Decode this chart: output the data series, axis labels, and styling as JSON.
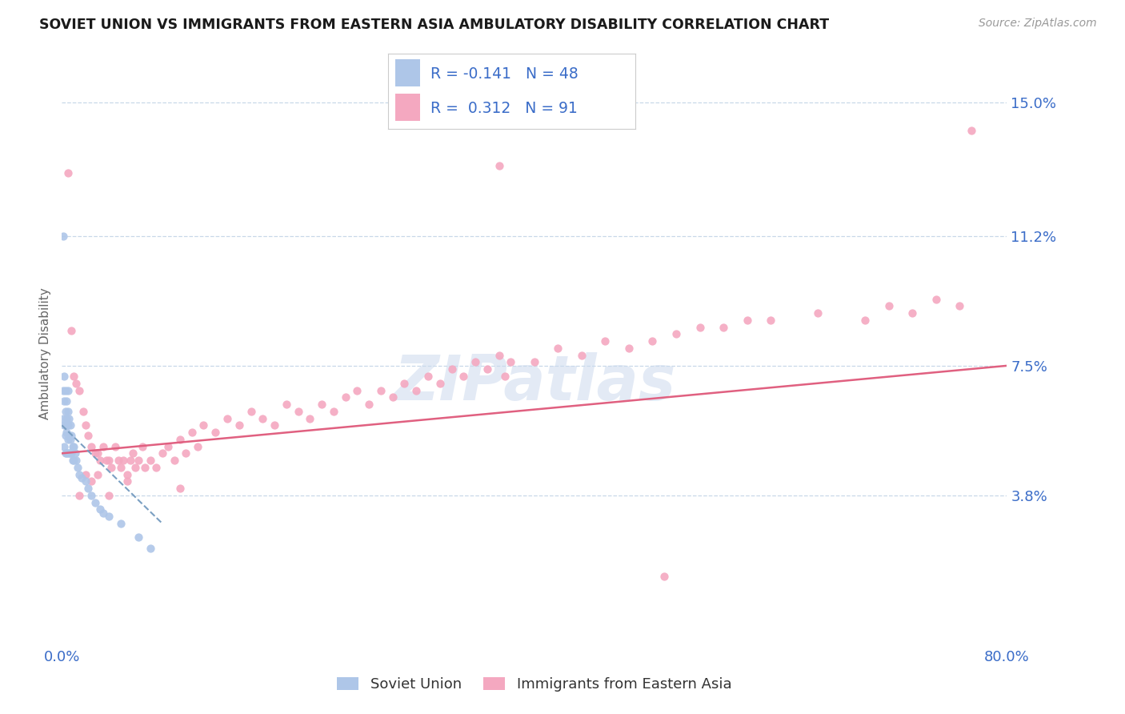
{
  "title": "SOVIET UNION VS IMMIGRANTS FROM EASTERN ASIA AMBULATORY DISABILITY CORRELATION CHART",
  "source": "Source: ZipAtlas.com",
  "ylabel": "Ambulatory Disability",
  "ytick_vals": [
    0.0,
    0.038,
    0.075,
    0.112,
    0.15
  ],
  "ytick_labels": [
    "",
    "3.8%",
    "7.5%",
    "11.2%",
    "15.0%"
  ],
  "xlim": [
    0.0,
    0.8
  ],
  "ylim": [
    -0.005,
    0.162
  ],
  "soviet_R": -0.141,
  "soviet_N": 48,
  "eastern_asia_R": 0.312,
  "eastern_asia_N": 91,
  "soviet_color": "#aec6e8",
  "eastern_asia_color": "#f4a8c0",
  "soviet_line_color": "#7a9fc2",
  "eastern_asia_line_color": "#e06080",
  "legend_text_color": "#3a6cc8",
  "background_color": "#ffffff",
  "grid_color": "#c8d8e8",
  "soviet_x": [
    0.001,
    0.001,
    0.001,
    0.002,
    0.002,
    0.002,
    0.002,
    0.003,
    0.003,
    0.003,
    0.003,
    0.003,
    0.004,
    0.004,
    0.004,
    0.004,
    0.005,
    0.005,
    0.005,
    0.005,
    0.005,
    0.006,
    0.006,
    0.006,
    0.007,
    0.007,
    0.007,
    0.008,
    0.008,
    0.009,
    0.009,
    0.01,
    0.01,
    0.011,
    0.012,
    0.013,
    0.015,
    0.017,
    0.02,
    0.022,
    0.025,
    0.028,
    0.032,
    0.035,
    0.04,
    0.05,
    0.065,
    0.075
  ],
  "soviet_y": [
    0.112,
    0.068,
    0.06,
    0.072,
    0.065,
    0.058,
    0.052,
    0.068,
    0.062,
    0.058,
    0.055,
    0.05,
    0.065,
    0.06,
    0.056,
    0.05,
    0.068,
    0.062,
    0.058,
    0.054,
    0.05,
    0.06,
    0.055,
    0.05,
    0.058,
    0.054,
    0.05,
    0.055,
    0.05,
    0.052,
    0.048,
    0.052,
    0.048,
    0.05,
    0.048,
    0.046,
    0.044,
    0.043,
    0.042,
    0.04,
    0.038,
    0.036,
    0.034,
    0.033,
    0.032,
    0.03,
    0.026,
    0.023
  ],
  "eastern_x": [
    0.005,
    0.008,
    0.01,
    0.012,
    0.015,
    0.018,
    0.02,
    0.022,
    0.025,
    0.028,
    0.03,
    0.032,
    0.035,
    0.038,
    0.04,
    0.042,
    0.045,
    0.048,
    0.05,
    0.052,
    0.055,
    0.058,
    0.06,
    0.062,
    0.065,
    0.068,
    0.07,
    0.075,
    0.08,
    0.085,
    0.09,
    0.095,
    0.1,
    0.105,
    0.11,
    0.115,
    0.12,
    0.13,
    0.14,
    0.15,
    0.16,
    0.17,
    0.18,
    0.19,
    0.2,
    0.21,
    0.22,
    0.23,
    0.24,
    0.25,
    0.26,
    0.27,
    0.28,
    0.29,
    0.3,
    0.31,
    0.32,
    0.33,
    0.34,
    0.35,
    0.36,
    0.37,
    0.375,
    0.38,
    0.4,
    0.42,
    0.44,
    0.46,
    0.48,
    0.5,
    0.52,
    0.54,
    0.56,
    0.58,
    0.6,
    0.64,
    0.68,
    0.7,
    0.72,
    0.74,
    0.76,
    0.77,
    0.51,
    0.1,
    0.055,
    0.04,
    0.03,
    0.025,
    0.02,
    0.015,
    0.37
  ],
  "eastern_y": [
    0.13,
    0.085,
    0.072,
    0.07,
    0.068,
    0.062,
    0.058,
    0.055,
    0.052,
    0.05,
    0.05,
    0.048,
    0.052,
    0.048,
    0.048,
    0.046,
    0.052,
    0.048,
    0.046,
    0.048,
    0.044,
    0.048,
    0.05,
    0.046,
    0.048,
    0.052,
    0.046,
    0.048,
    0.046,
    0.05,
    0.052,
    0.048,
    0.054,
    0.05,
    0.056,
    0.052,
    0.058,
    0.056,
    0.06,
    0.058,
    0.062,
    0.06,
    0.058,
    0.064,
    0.062,
    0.06,
    0.064,
    0.062,
    0.066,
    0.068,
    0.064,
    0.068,
    0.066,
    0.07,
    0.068,
    0.072,
    0.07,
    0.074,
    0.072,
    0.076,
    0.074,
    0.078,
    0.072,
    0.076,
    0.076,
    0.08,
    0.078,
    0.082,
    0.08,
    0.082,
    0.084,
    0.086,
    0.086,
    0.088,
    0.088,
    0.09,
    0.088,
    0.092,
    0.09,
    0.094,
    0.092,
    0.142,
    0.015,
    0.04,
    0.042,
    0.038,
    0.044,
    0.042,
    0.044,
    0.038,
    0.132
  ],
  "eastern_line_x0": 0.0,
  "eastern_line_x1": 0.8,
  "eastern_line_y0": 0.05,
  "eastern_line_y1": 0.075,
  "soviet_line_x0": 0.0,
  "soviet_line_x1": 0.085,
  "soviet_line_y0": 0.058,
  "soviet_line_y1": 0.03
}
